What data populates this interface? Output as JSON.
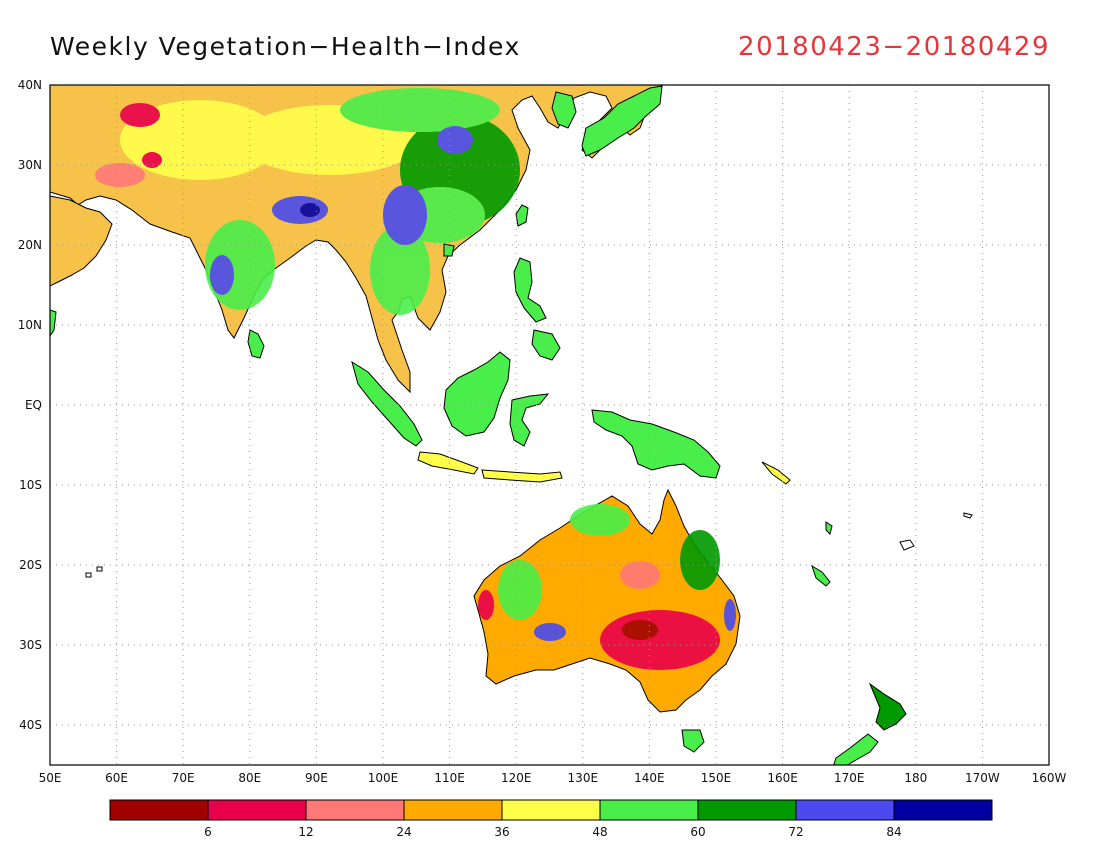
{
  "title": "Weekly Vegetation−Health−Index",
  "date_range": "20180423−20180429",
  "date_color": "#e8343b",
  "y_axis_labels": [
    "40N",
    "30N",
    "20N",
    "10N",
    "EQ",
    "10S",
    "20S",
    "30S",
    "40S"
  ],
  "x_axis_labels": [
    "50E",
    "60E",
    "70E",
    "80E",
    "90E",
    "100E",
    "110E",
    "120E",
    "130E",
    "140E",
    "150E",
    "160E",
    "170E",
    "180",
    "170W",
    "160W"
  ],
  "legend": {
    "colors": [
      "#a00000",
      "#e8004a",
      "#ff7878",
      "#ffaa00",
      "#ffff4a",
      "#4aee4a",
      "#009a00",
      "#4a4aee",
      "#0000a0"
    ],
    "tick_labels": [
      "6",
      "12",
      "24",
      "36",
      "48",
      "60",
      "72",
      "84"
    ]
  },
  "palette": {
    "land_default": "#4aee4a",
    "coast": "#000000",
    "grid": "#9a9a9a"
  }
}
